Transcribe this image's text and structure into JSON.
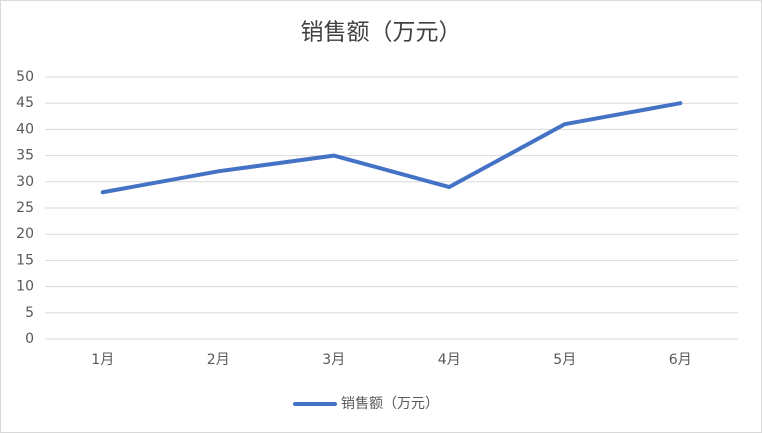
{
  "chart_data": {
    "type": "line",
    "title": "销售额（万元）",
    "categories": [
      "1月",
      "2月",
      "3月",
      "4月",
      "5月",
      "6月"
    ],
    "series": [
      {
        "name": "销售额（万元）",
        "color": "#4472c4",
        "values": [
          28,
          32,
          35,
          29,
          41,
          45
        ]
      }
    ],
    "ylim": [
      0,
      50
    ],
    "yticks": [
      0,
      5,
      10,
      15,
      20,
      25,
      30,
      35,
      40,
      45,
      50
    ],
    "grid": true,
    "legend": "bottom"
  }
}
